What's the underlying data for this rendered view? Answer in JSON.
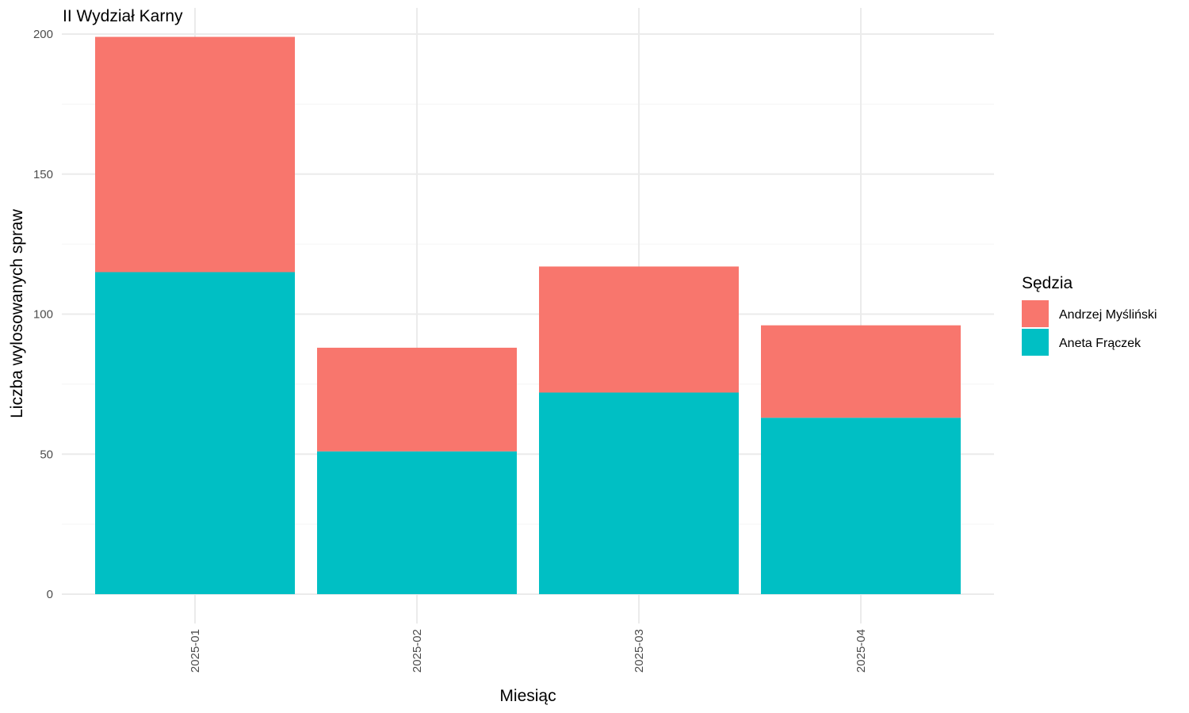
{
  "chart_data": {
    "type": "bar",
    "stacked": true,
    "title": "II Wydział Karny",
    "xlabel": "Miesiąc",
    "ylabel": "Liczba wylosowanych spraw",
    "categories": [
      "2025-01",
      "2025-02",
      "2025-03",
      "2025-04"
    ],
    "series": [
      {
        "name": "Aneta Frączek",
        "color": "#00BFC4",
        "values": [
          115,
          51,
          72,
          63
        ]
      },
      {
        "name": "Andrzej Myśliński",
        "color": "#F8766D",
        "values": [
          84,
          37,
          45,
          33
        ]
      }
    ],
    "ylim": [
      0,
      200
    ],
    "yticks": [
      0,
      50,
      100,
      150,
      200
    ],
    "grid": true,
    "legend": {
      "title": "Sędzia",
      "position": "right",
      "order": [
        "Andrzej Myśliński",
        "Aneta Frączek"
      ]
    }
  }
}
